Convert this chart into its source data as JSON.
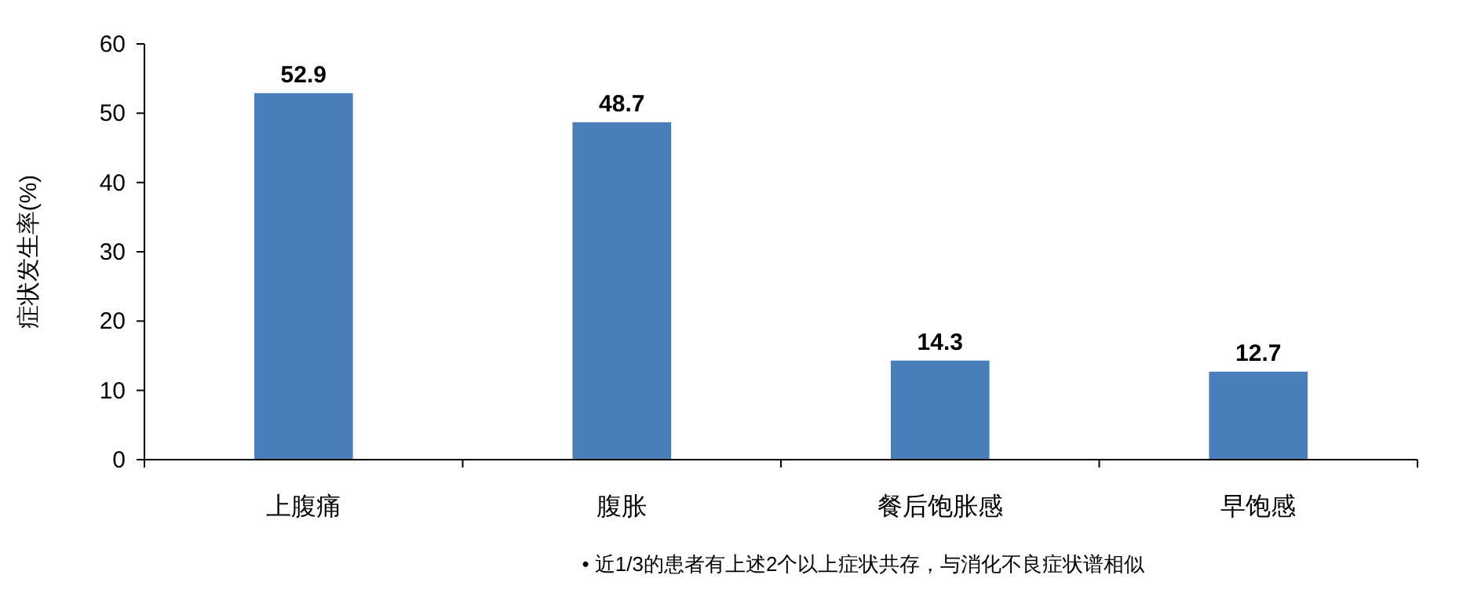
{
  "chart_data": {
    "type": "bar",
    "ylabel": "症状发生率(%)",
    "categories": [
      "上腹痛",
      "腹胀",
      "餐后饱胀感",
      "早饱感"
    ],
    "values": [
      52.9,
      48.7,
      14.3,
      12.7
    ],
    "color": "#4a7ebb",
    "ylim": [
      0,
      60
    ],
    "yticks": [
      0,
      10,
      20,
      30,
      40,
      50,
      60
    ],
    "grid": false,
    "data_labels": true,
    "annotations": [
      "•  近1/3的患者有上述2个以上症状共存，与消化不良症状谱相似"
    ]
  }
}
